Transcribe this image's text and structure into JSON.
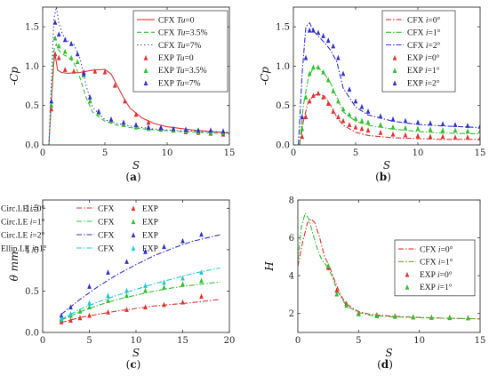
{
  "chart_data": [
    {
      "id": "a",
      "type": "line",
      "label": "(a)",
      "xlabel": "S",
      "ylabel": "-Cp",
      "xlim": [
        0,
        15
      ],
      "ylim": [
        0,
        1.75
      ],
      "xticks": [
        0,
        5,
        10,
        15
      ],
      "yticks": [
        0,
        0.5,
        1.0,
        1.5
      ],
      "ytick_labels": [
        "0.0",
        "0.5",
        "1.0",
        "1.5"
      ],
      "legend_position": "top-right",
      "series": [
        {
          "kind": "line",
          "dash": "solid",
          "color": "#e03030",
          "label_prefix": "CFX",
          "var": "Tu",
          "value": "=0",
          "x": [
            0.5,
            0.7,
            0.9,
            1.0,
            1.2,
            1.5,
            2.0,
            3.0,
            4.0,
            5.0,
            5.5,
            6.0,
            6.5,
            7.0,
            8.0,
            9.0,
            10.0,
            12.0,
            15.0
          ],
          "y": [
            0.0,
            0.55,
            1.05,
            1.15,
            0.95,
            0.92,
            0.91,
            0.92,
            0.95,
            0.96,
            0.9,
            0.75,
            0.6,
            0.47,
            0.34,
            0.27,
            0.23,
            0.19,
            0.15
          ]
        },
        {
          "kind": "line",
          "dash": "dashed",
          "color": "#30c030",
          "label_prefix": "CFX",
          "var": "Tu",
          "value": "=3.5%",
          "x": [
            0.5,
            0.7,
            0.9,
            1.1,
            1.3,
            1.6,
            2.0,
            2.5,
            3.0,
            3.5,
            4.0,
            5.0,
            6.0,
            7.0,
            9.0,
            11.0,
            15.0
          ],
          "y": [
            0.0,
            0.6,
            1.2,
            1.28,
            1.2,
            1.15,
            1.12,
            1.05,
            0.85,
            0.6,
            0.42,
            0.3,
            0.25,
            0.22,
            0.19,
            0.17,
            0.14
          ]
        },
        {
          "kind": "line",
          "dash": "dotted",
          "color": "#4040d0",
          "label_prefix": "CFX",
          "var": "Tu",
          "value": "=7%",
          "x": [
            0.5,
            0.7,
            0.9,
            1.1,
            1.3,
            1.6,
            2.0,
            2.5,
            3.0,
            3.5,
            4.0,
            5.0,
            6.0,
            7.0,
            9.0,
            11.0,
            15.0
          ],
          "y": [
            0.0,
            0.8,
            1.6,
            1.75,
            1.55,
            1.4,
            1.32,
            1.28,
            1.1,
            0.75,
            0.48,
            0.32,
            0.27,
            0.24,
            0.2,
            0.18,
            0.16
          ]
        },
        {
          "kind": "marker",
          "color": "#e03030",
          "label_prefix": "EXP",
          "var": "Tu",
          "value": "=0",
          "x": [
            0.7,
            1.0,
            1.3,
            1.8,
            2.5,
            3.3,
            4.2,
            5.0,
            5.8,
            6.6,
            7.5,
            8.5,
            9.5,
            10.5,
            11.5,
            12.5,
            13.5,
            14.5
          ],
          "y": [
            0.45,
            1.15,
            1.1,
            0.95,
            0.93,
            0.92,
            0.93,
            0.92,
            0.75,
            0.55,
            0.38,
            0.28,
            0.22,
            0.18,
            0.16,
            0.15,
            0.14,
            0.13
          ]
        },
        {
          "kind": "marker",
          "color": "#30c030",
          "label_prefix": "EXP",
          "var": "Tu",
          "value": "=3.5%",
          "x": [
            0.7,
            1.0,
            1.3,
            1.8,
            2.3,
            2.8,
            3.3,
            3.8,
            4.5,
            5.5,
            6.5,
            7.5,
            8.5,
            9.5,
            10.5,
            11.5,
            12.5,
            13.5,
            14.5
          ],
          "y": [
            0.5,
            1.35,
            1.25,
            1.18,
            1.1,
            1.05,
            0.88,
            0.55,
            0.4,
            0.3,
            0.25,
            0.22,
            0.2,
            0.19,
            0.18,
            0.17,
            0.16,
            0.15,
            0.15
          ]
        },
        {
          "kind": "marker",
          "color": "#3030d0",
          "label_prefix": "EXP",
          "var": "Tu",
          "value": "=7%",
          "x": [
            0.7,
            1.0,
            1.3,
            1.8,
            2.3,
            2.8,
            3.3,
            3.8,
            4.5,
            5.5,
            6.5,
            7.5,
            8.5,
            9.5,
            10.5,
            11.5,
            12.5,
            13.5,
            14.5
          ],
          "y": [
            0.55,
            1.55,
            1.4,
            1.33,
            1.28,
            1.15,
            0.9,
            0.6,
            0.42,
            0.32,
            0.28,
            0.25,
            0.22,
            0.21,
            0.2,
            0.19,
            0.18,
            0.18,
            0.17
          ]
        }
      ]
    },
    {
      "id": "b",
      "type": "line",
      "label": "(b)",
      "xlabel": "S",
      "ylabel": "-Cp",
      "xlim": [
        0,
        15
      ],
      "ylim": [
        0,
        1.75
      ],
      "xticks": [
        0,
        5,
        10,
        15
      ],
      "yticks": [
        0,
        0.5,
        1.0,
        1.5
      ],
      "ytick_labels": [
        "0.0",
        "0.5",
        "1.0",
        "1.5"
      ],
      "legend_position": "top-right",
      "series": [
        {
          "kind": "line",
          "dash": "dashdot",
          "color": "#e03030",
          "label_prefix": "CFX",
          "var": "i",
          "value": "=0°",
          "x": [
            0.5,
            0.8,
            1.2,
            1.6,
            2.0,
            2.5,
            3.0,
            3.5,
            4.0,
            5.0,
            6.0,
            8.0,
            10.0,
            12.0,
            15.0
          ],
          "y": [
            0.0,
            0.3,
            0.55,
            0.62,
            0.65,
            0.62,
            0.5,
            0.35,
            0.25,
            0.16,
            0.12,
            0.09,
            0.08,
            0.07,
            0.07
          ]
        },
        {
          "kind": "line",
          "dash": "dashdot",
          "color": "#30c030",
          "label_prefix": "CFX",
          "var": "i",
          "value": "=1°",
          "x": [
            0.5,
            0.8,
            1.2,
            1.6,
            2.0,
            2.5,
            3.0,
            3.5,
            4.0,
            5.0,
            6.0,
            8.0,
            10.0,
            12.0,
            15.0
          ],
          "y": [
            0.0,
            0.5,
            0.85,
            0.98,
            0.98,
            0.9,
            0.78,
            0.6,
            0.42,
            0.3,
            0.25,
            0.2,
            0.17,
            0.15,
            0.14
          ]
        },
        {
          "kind": "line",
          "dash": "dashdot",
          "color": "#3030d0",
          "label_prefix": "CFX",
          "var": "i",
          "value": "=2°",
          "x": [
            0.4,
            0.7,
            1.0,
            1.3,
            1.6,
            2.0,
            2.5,
            3.0,
            3.5,
            4.0,
            5.0,
            6.0,
            8.0,
            10.0,
            12.0,
            15.0
          ],
          "y": [
            0.0,
            0.9,
            1.5,
            1.55,
            1.45,
            1.38,
            1.3,
            1.2,
            1.05,
            0.72,
            0.48,
            0.38,
            0.3,
            0.26,
            0.24,
            0.22
          ]
        },
        {
          "kind": "marker",
          "color": "#e03030",
          "label_prefix": "EXP",
          "var": "i",
          "value": "=0°",
          "x": [
            0.7,
            1.0,
            1.3,
            1.6,
            2.0,
            2.4,
            2.8,
            3.2,
            3.6,
            4.0,
            4.5,
            5.0,
            5.5,
            6.0,
            7.0,
            8.0,
            9.0,
            10.0,
            11.0,
            12.0,
            13.0,
            14.0,
            15.0
          ],
          "y": [
            0.1,
            0.35,
            0.55,
            0.62,
            0.65,
            0.6,
            0.52,
            0.42,
            0.35,
            0.3,
            0.25,
            0.22,
            0.2,
            0.18,
            0.15,
            0.13,
            0.12,
            0.11,
            0.1,
            0.1,
            0.09,
            0.09,
            0.08
          ]
        },
        {
          "kind": "marker",
          "color": "#30c030",
          "label_prefix": "EXP",
          "var": "i",
          "value": "=1°",
          "x": [
            0.7,
            1.0,
            1.3,
            1.6,
            2.0,
            2.4,
            2.8,
            3.2,
            3.6,
            4.0,
            4.5,
            5.0,
            5.5,
            6.0,
            7.0,
            8.0,
            9.0,
            10.0,
            11.0,
            12.0,
            13.0,
            14.0,
            15.0
          ],
          "y": [
            0.2,
            0.6,
            0.9,
            0.98,
            0.98,
            0.92,
            0.82,
            0.68,
            0.55,
            0.45,
            0.38,
            0.33,
            0.3,
            0.28,
            0.25,
            0.22,
            0.21,
            0.2,
            0.19,
            0.18,
            0.18,
            0.17,
            0.17
          ]
        },
        {
          "kind": "marker",
          "color": "#3030d0",
          "label_prefix": "EXP",
          "var": "i",
          "value": "=2°",
          "x": [
            0.7,
            1.0,
            1.3,
            1.6,
            2.0,
            2.4,
            2.8,
            3.2,
            3.6,
            4.0,
            4.5,
            5.0,
            5.5,
            6.0,
            7.0,
            8.0,
            9.0,
            10.0,
            11.0,
            12.0,
            13.0,
            14.0,
            15.0
          ],
          "y": [
            0.35,
            1.1,
            1.45,
            1.45,
            1.42,
            1.38,
            1.32,
            1.25,
            1.1,
            0.9,
            0.7,
            0.55,
            0.48,
            0.42,
            0.36,
            0.32,
            0.3,
            0.28,
            0.27,
            0.26,
            0.25,
            0.24,
            0.23
          ]
        }
      ]
    },
    {
      "id": "c",
      "type": "line",
      "label": "(c)",
      "xlabel": "S",
      "ylabel": "θ mm",
      "xlim": [
        0,
        20
      ],
      "ylim": [
        0,
        1.6
      ],
      "xticks": [
        0,
        5,
        10,
        15,
        20
      ],
      "yticks": [
        0,
        0.5,
        1.0,
        1.5
      ],
      "ytick_labels": [
        "0.0",
        "0.5",
        "1.0",
        "1.5"
      ],
      "legend_position": "top-left",
      "legend_rows": [
        {
          "case": "Circ.LE",
          "var": "i",
          "value": "=0°",
          "cfx": "CFX",
          "exp": "EXP",
          "color": "#e03030"
        },
        {
          "case": "Circ.LE",
          "var": "i",
          "value": "=1°",
          "cfx": "CFX",
          "exp": "EXP",
          "color": "#30c030"
        },
        {
          "case": "Circ.LE",
          "var": "i",
          "value": "=2°",
          "cfx": "CFX",
          "exp": "EXP",
          "color": "#3030d0"
        },
        {
          "case": "Ellip.LE",
          "var": "i",
          "value": "=1°",
          "cfx": "CFX",
          "exp": "EXP",
          "color": "#20c8d8"
        }
      ],
      "series": [
        {
          "kind": "line",
          "dash": "dashdot",
          "color": "#e03030",
          "x": [
            2,
            4,
            6,
            8,
            10,
            12,
            14,
            16,
            19
          ],
          "y": [
            0.12,
            0.18,
            0.22,
            0.26,
            0.29,
            0.32,
            0.34,
            0.36,
            0.4
          ]
        },
        {
          "kind": "line",
          "dash": "dashdot",
          "color": "#30c030",
          "x": [
            2,
            4,
            6,
            8,
            10,
            12,
            14,
            16,
            19
          ],
          "y": [
            0.15,
            0.25,
            0.33,
            0.4,
            0.45,
            0.5,
            0.54,
            0.57,
            0.61
          ]
        },
        {
          "kind": "line",
          "dash": "dashdot",
          "color": "#3030d0",
          "x": [
            2,
            4,
            6,
            8,
            10,
            12,
            14,
            16,
            19
          ],
          "y": [
            0.22,
            0.4,
            0.56,
            0.7,
            0.82,
            0.93,
            1.02,
            1.1,
            1.18
          ]
        },
        {
          "kind": "line",
          "dash": "dashdot",
          "color": "#20c8d8",
          "x": [
            2,
            4,
            6,
            8,
            10,
            12,
            14,
            16,
            19
          ],
          "y": [
            0.16,
            0.28,
            0.37,
            0.45,
            0.52,
            0.59,
            0.65,
            0.71,
            0.78
          ]
        },
        {
          "kind": "marker",
          "color": "#e03030",
          "x": [
            2,
            3,
            4,
            5,
            7,
            9,
            11,
            13,
            15,
            17
          ],
          "y": [
            0.12,
            0.14,
            0.17,
            0.2,
            0.24,
            0.27,
            0.3,
            0.33,
            0.36,
            0.43
          ]
        },
        {
          "kind": "marker",
          "color": "#30c030",
          "x": [
            2,
            3,
            4,
            5,
            7,
            9,
            11,
            13,
            15,
            17
          ],
          "y": [
            0.15,
            0.2,
            0.25,
            0.3,
            0.38,
            0.44,
            0.5,
            0.54,
            0.58,
            0.62
          ]
        },
        {
          "kind": "marker",
          "color": "#3030d0",
          "x": [
            2,
            3,
            5,
            7,
            9,
            11,
            13,
            15,
            17
          ],
          "y": [
            0.2,
            0.3,
            0.55,
            0.72,
            0.85,
            0.97,
            1.03,
            1.1,
            1.18
          ]
        },
        {
          "kind": "marker",
          "color": "#20c8d8",
          "x": [
            2,
            3,
            5,
            7,
            9,
            11,
            13,
            15,
            17
          ],
          "y": [
            0.16,
            0.22,
            0.35,
            0.44,
            0.5,
            0.56,
            0.6,
            0.65,
            0.72
          ]
        }
      ]
    },
    {
      "id": "d",
      "type": "line",
      "label": "(d)",
      "xlabel": "S",
      "ylabel": "H",
      "xlim": [
        0,
        15
      ],
      "ylim": [
        1,
        8
      ],
      "xticks": [
        0,
        5,
        10,
        15
      ],
      "yticks": [
        2,
        4,
        6,
        8
      ],
      "ytick_labels": [
        "2",
        "4",
        "6",
        "8"
      ],
      "legend_position": "top-right",
      "series": [
        {
          "kind": "line",
          "dash": "dashdot",
          "color": "#e03030",
          "label_prefix": "CFX",
          "var": "i",
          "value": "=0°",
          "x": [
            0.0,
            0.4,
            0.8,
            1.1,
            1.4,
            1.8,
            2.2,
            2.6,
            3.0,
            3.5,
            4.0,
            5.0,
            6.0,
            8.0,
            10.0,
            12.0,
            15.0
          ],
          "y": [
            4.5,
            5.8,
            6.8,
            7.0,
            6.8,
            6.0,
            5.0,
            4.5,
            3.8,
            3.0,
            2.5,
            2.1,
            1.95,
            1.85,
            1.8,
            1.75,
            1.72
          ]
        },
        {
          "kind": "line",
          "dash": "dashdot",
          "color": "#30c030",
          "label_prefix": "CFX",
          "var": "i",
          "value": "=1°",
          "x": [
            0.0,
            0.3,
            0.6,
            0.9,
            1.2,
            1.6,
            2.0,
            2.4,
            2.8,
            3.2,
            3.6,
            4.0,
            5.0,
            6.0,
            8.0,
            10.0,
            12.0,
            15.0
          ],
          "y": [
            4.8,
            6.6,
            7.3,
            7.0,
            6.3,
            5.4,
            4.8,
            4.5,
            4.0,
            3.3,
            2.8,
            2.4,
            2.05,
            1.9,
            1.82,
            1.78,
            1.75,
            1.72
          ]
        },
        {
          "kind": "marker",
          "color": "#e03030",
          "label_prefix": "EXP",
          "var": "i",
          "value": "=0°",
          "x": [
            2.5,
            3.2,
            4.0,
            5.0,
            6.5,
            8.0,
            9.5,
            11.0,
            12.5,
            14.0
          ],
          "y": [
            4.4,
            3.2,
            2.5,
            2.0,
            1.9,
            1.85,
            1.8,
            1.78,
            1.78,
            1.75
          ]
        },
        {
          "kind": "marker",
          "color": "#30c030",
          "label_prefix": "EXP",
          "var": "i",
          "value": "=1°",
          "x": [
            2.5,
            3.2,
            4.0,
            5.0,
            6.5,
            8.0,
            9.5,
            11.0,
            12.5,
            14.0
          ],
          "y": [
            4.5,
            3.0,
            2.4,
            1.95,
            1.85,
            1.82,
            1.78,
            1.76,
            1.75,
            1.74
          ]
        }
      ]
    }
  ]
}
